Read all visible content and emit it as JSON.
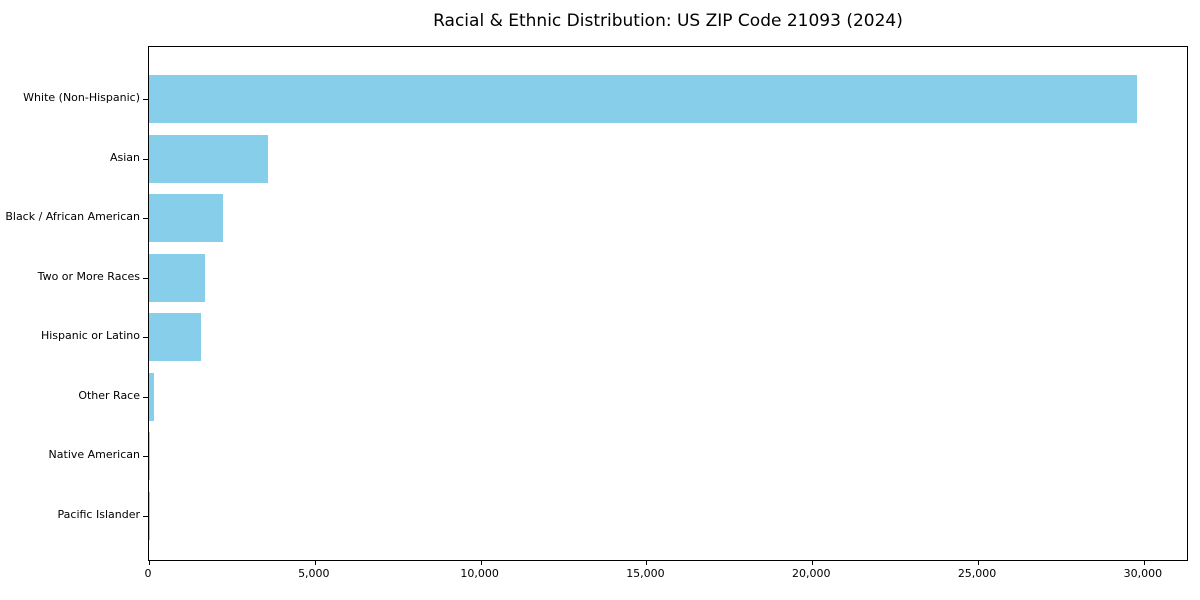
{
  "chart_data": {
    "type": "bar",
    "orientation": "horizontal",
    "title": "Racial & Ethnic Distribution: US ZIP Code 21093 (2024)",
    "categories": [
      "White (Non-Hispanic)",
      "Asian",
      "Black / African American",
      "Two or More Races",
      "Hispanic or Latino",
      "Other Race",
      "Native American",
      "Pacific Islander"
    ],
    "values": [
      29800,
      3600,
      2230,
      1680,
      1560,
      150,
      45,
      10
    ],
    "xlabel": "",
    "ylabel": "",
    "xlim": [
      0,
      31300
    ],
    "xticks": [
      {
        "value": 0,
        "label": "0"
      },
      {
        "value": 5000,
        "label": "5,000"
      },
      {
        "value": 10000,
        "label": "10,000"
      },
      {
        "value": 15000,
        "label": "15,000"
      },
      {
        "value": 20000,
        "label": "20,000"
      },
      {
        "value": 25000,
        "label": "25,000"
      },
      {
        "value": 30000,
        "label": "30,000"
      }
    ],
    "bar_color": "#87CEEB",
    "background_color": "#ffffff",
    "spine_color": "#000000",
    "grid": false,
    "legend": null
  }
}
